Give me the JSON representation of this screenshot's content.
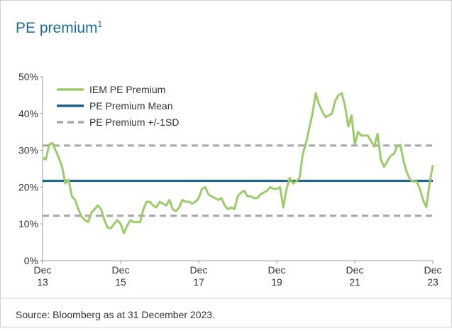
{
  "chart_data": {
    "type": "line",
    "title": "PE premium",
    "title_superscript": "1",
    "source": "Source: Bloomberg as at 31 December 2023.",
    "x": [
      "2013-12",
      "2014-01",
      "2014-02",
      "2014-03",
      "2014-04",
      "2014-05",
      "2014-06",
      "2014-07",
      "2014-08",
      "2014-09",
      "2014-10",
      "2014-11",
      "2014-12",
      "2015-01",
      "2015-02",
      "2015-03",
      "2015-04",
      "2015-05",
      "2015-06",
      "2015-07",
      "2015-08",
      "2015-09",
      "2015-10",
      "2015-11",
      "2015-12",
      "2016-01",
      "2016-02",
      "2016-03",
      "2016-04",
      "2016-05",
      "2016-06",
      "2016-07",
      "2016-08",
      "2016-09",
      "2016-10",
      "2016-11",
      "2016-12",
      "2017-01",
      "2017-02",
      "2017-03",
      "2017-04",
      "2017-05",
      "2017-06",
      "2017-07",
      "2017-08",
      "2017-09",
      "2017-10",
      "2017-11",
      "2017-12",
      "2018-01",
      "2018-02",
      "2018-03",
      "2018-04",
      "2018-05",
      "2018-06",
      "2018-07",
      "2018-08",
      "2018-09",
      "2018-10",
      "2018-11",
      "2018-12",
      "2019-01",
      "2019-02",
      "2019-03",
      "2019-04",
      "2019-05",
      "2019-06",
      "2019-07",
      "2019-08",
      "2019-09",
      "2019-10",
      "2019-11",
      "2019-12",
      "2020-01",
      "2020-02",
      "2020-03",
      "2020-04",
      "2020-05",
      "2020-06",
      "2020-07",
      "2020-08",
      "2020-09",
      "2020-10",
      "2020-11",
      "2020-12",
      "2021-01",
      "2021-02",
      "2021-03",
      "2021-04",
      "2021-05",
      "2021-06",
      "2021-07",
      "2021-08",
      "2021-09",
      "2021-10",
      "2021-11",
      "2021-12",
      "2022-01",
      "2022-02",
      "2022-03",
      "2022-04",
      "2022-05",
      "2022-06",
      "2022-07",
      "2022-08",
      "2022-09",
      "2022-10",
      "2022-11",
      "2022-12",
      "2023-01",
      "2023-02",
      "2023-03",
      "2023-04",
      "2023-05",
      "2023-06",
      "2023-07",
      "2023-08",
      "2023-09",
      "2023-10",
      "2023-11",
      "2023-12"
    ],
    "series": [
      {
        "name": "IEM PE Premium",
        "color": "#9ccb6b",
        "values": [
          28,
          27.5,
          31.5,
          32,
          30,
          28,
          25.5,
          21,
          22,
          17.5,
          16.5,
          14,
          12,
          11,
          10.5,
          13,
          14,
          15,
          14,
          11,
          9,
          8.8,
          10,
          11,
          10,
          7.5,
          9.5,
          11,
          10.5,
          10.5,
          10.5,
          14,
          16,
          16,
          15,
          14.5,
          16,
          15.5,
          15,
          16.5,
          14,
          13.5,
          14.5,
          16.5,
          16,
          16,
          15.5,
          16,
          17,
          19.5,
          20,
          18,
          17.5,
          17,
          16.5,
          17,
          15,
          14,
          14.5,
          14,
          17.5,
          18.5,
          19,
          17.5,
          17.5,
          17,
          17,
          18,
          18.5,
          19,
          20,
          19.5,
          19.5,
          20,
          14.5,
          19.5,
          22.5,
          21,
          21.5,
          22.5,
          29,
          32,
          36,
          40,
          45.5,
          42.5,
          40.5,
          39,
          39.5,
          40,
          43.5,
          45,
          45.5,
          42,
          36.5,
          39.5,
          31.5,
          35,
          34,
          34,
          34,
          32.5,
          31,
          34.5,
          27.5,
          25.5,
          27,
          28.5,
          29,
          31,
          31.5,
          27,
          24,
          22,
          21.5,
          21.5,
          19.5,
          16.5,
          14.5,
          21,
          26
        ]
      }
    ],
    "reference_lines": [
      {
        "name": "PE Premium Mean",
        "color": "#1b5f8c",
        "style": "solid",
        "values": [
          21.7
        ]
      },
      {
        "name": "PE Premium +/-1SD",
        "color": "#a6a6a6",
        "style": "dashed",
        "values": [
          31.3,
          12.2
        ]
      }
    ],
    "xlim": [
      "2013-12",
      "2023-12"
    ],
    "xticks": [
      {
        "value": "2013-12",
        "label": "Dec 13"
      },
      {
        "value": "2015-12",
        "label": "Dec 15"
      },
      {
        "value": "2017-12",
        "label": "Dec 17"
      },
      {
        "value": "2019-12",
        "label": "Dec 19"
      },
      {
        "value": "2021-12",
        "label": "Dec 21"
      },
      {
        "value": "2023-12",
        "label": "Dec 23"
      }
    ],
    "ylim": [
      0,
      50
    ],
    "yticks": [
      {
        "value": 0,
        "label": "0%"
      },
      {
        "value": 10,
        "label": "10%"
      },
      {
        "value": 20,
        "label": "20%"
      },
      {
        "value": 30,
        "label": "30%"
      },
      {
        "value": 40,
        "label": "40%"
      },
      {
        "value": 50,
        "label": "50%"
      }
    ],
    "grid": false,
    "legend": "top-left"
  }
}
